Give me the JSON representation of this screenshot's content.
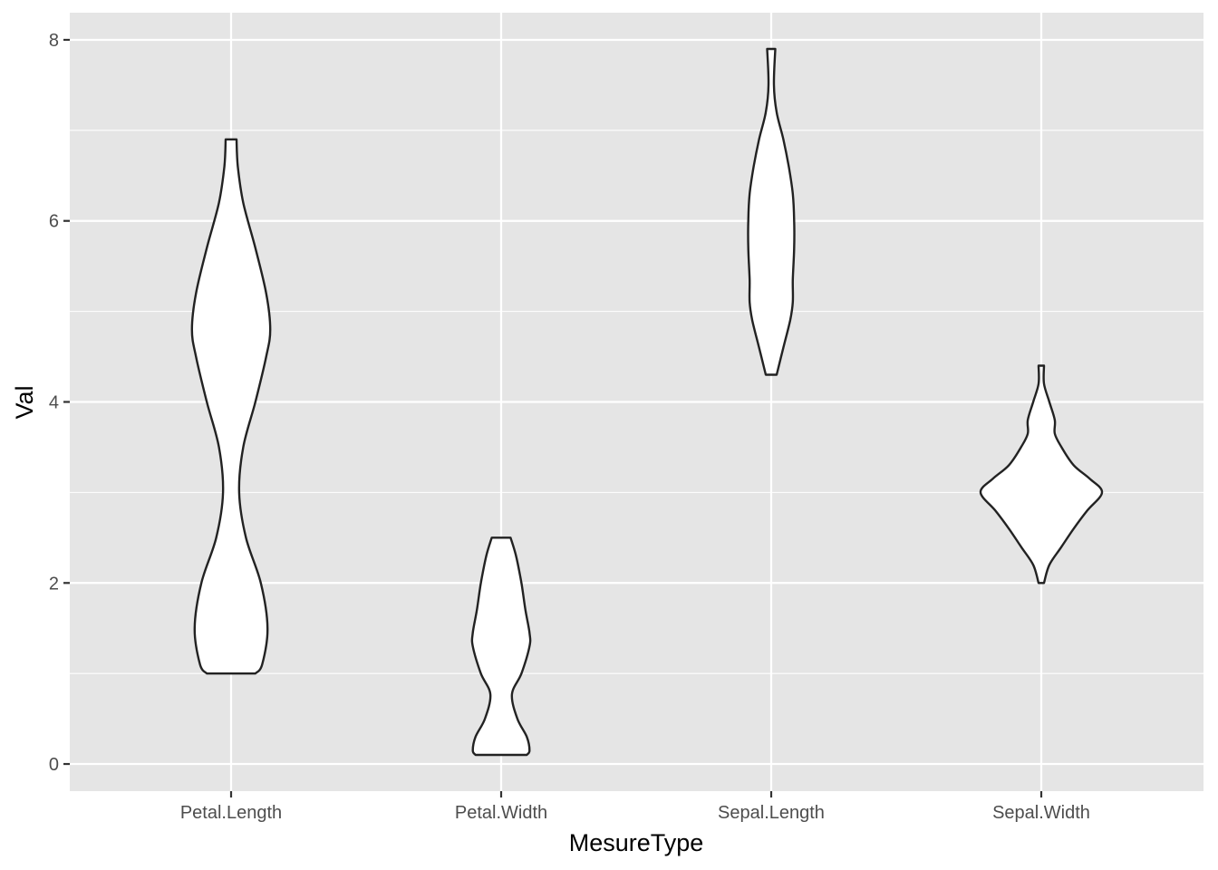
{
  "chart_data": {
    "type": "violin",
    "title": "",
    "xlabel": "MesureType",
    "ylabel": "Val",
    "ylim": [
      -0.3,
      8.3
    ],
    "y_ticks": [
      0,
      2,
      4,
      6,
      8
    ],
    "grid": true,
    "legend": "none",
    "colors": {
      "panel": "#e5e5e5",
      "grid": "#ffffff",
      "violin_fill": "#ffffff",
      "violin_stroke": "#222222",
      "tick_text": "#4d4d4d",
      "title_text": "#000000"
    },
    "categories": [
      "Petal.Length",
      "Petal.Width",
      "Sepal.Length",
      "Sepal.Width"
    ],
    "series": [
      {
        "category": "Petal.Length",
        "min": 1.0,
        "max": 6.9,
        "density_profile": [
          {
            "y": 1.0,
            "half_width": 0.18
          },
          {
            "y": 1.1,
            "half_width": 0.23
          },
          {
            "y": 1.5,
            "half_width": 0.27
          },
          {
            "y": 2.0,
            "half_width": 0.22
          },
          {
            "y": 2.5,
            "half_width": 0.11
          },
          {
            "y": 3.0,
            "half_width": 0.06
          },
          {
            "y": 3.5,
            "half_width": 0.09
          },
          {
            "y": 4.0,
            "half_width": 0.18
          },
          {
            "y": 4.5,
            "half_width": 0.26
          },
          {
            "y": 4.8,
            "half_width": 0.29
          },
          {
            "y": 5.2,
            "half_width": 0.26
          },
          {
            "y": 5.7,
            "half_width": 0.18
          },
          {
            "y": 6.2,
            "half_width": 0.09
          },
          {
            "y": 6.6,
            "half_width": 0.05
          },
          {
            "y": 6.9,
            "half_width": 0.04
          }
        ]
      },
      {
        "category": "Petal.Width",
        "min": 0.1,
        "max": 2.5,
        "density_profile": [
          {
            "y": 0.1,
            "half_width": 0.19
          },
          {
            "y": 0.15,
            "half_width": 0.21
          },
          {
            "y": 0.3,
            "half_width": 0.19
          },
          {
            "y": 0.5,
            "half_width": 0.12
          },
          {
            "y": 0.77,
            "half_width": 0.08
          },
          {
            "y": 1.0,
            "half_width": 0.15
          },
          {
            "y": 1.3,
            "half_width": 0.21
          },
          {
            "y": 1.45,
            "half_width": 0.21
          },
          {
            "y": 1.7,
            "half_width": 0.18
          },
          {
            "y": 2.0,
            "half_width": 0.15
          },
          {
            "y": 2.3,
            "half_width": 0.11
          },
          {
            "y": 2.5,
            "half_width": 0.07
          }
        ]
      },
      {
        "category": "Sepal.Length",
        "min": 4.3,
        "max": 7.9,
        "density_profile": [
          {
            "y": 4.3,
            "half_width": 0.04
          },
          {
            "y": 4.6,
            "half_width": 0.09
          },
          {
            "y": 4.9,
            "half_width": 0.14
          },
          {
            "y": 5.1,
            "half_width": 0.16
          },
          {
            "y": 5.35,
            "half_width": 0.16
          },
          {
            "y": 5.7,
            "half_width": 0.17
          },
          {
            "y": 6.0,
            "half_width": 0.17
          },
          {
            "y": 6.3,
            "half_width": 0.16
          },
          {
            "y": 6.6,
            "half_width": 0.13
          },
          {
            "y": 6.9,
            "half_width": 0.09
          },
          {
            "y": 7.2,
            "half_width": 0.04
          },
          {
            "y": 7.5,
            "half_width": 0.02
          },
          {
            "y": 7.9,
            "half_width": 0.03
          }
        ]
      },
      {
        "category": "Sepal.Width",
        "min": 2.0,
        "max": 4.4,
        "density_profile": [
          {
            "y": 2.0,
            "half_width": 0.02
          },
          {
            "y": 2.2,
            "half_width": 0.06
          },
          {
            "y": 2.4,
            "half_width": 0.15
          },
          {
            "y": 2.6,
            "half_width": 0.24
          },
          {
            "y": 2.8,
            "half_width": 0.34
          },
          {
            "y": 3.0,
            "half_width": 0.45
          },
          {
            "y": 3.15,
            "half_width": 0.36
          },
          {
            "y": 3.3,
            "half_width": 0.24
          },
          {
            "y": 3.5,
            "half_width": 0.15
          },
          {
            "y": 3.65,
            "half_width": 0.1
          },
          {
            "y": 3.8,
            "half_width": 0.1
          },
          {
            "y": 4.0,
            "half_width": 0.06
          },
          {
            "y": 4.2,
            "half_width": 0.02
          },
          {
            "y": 4.4,
            "half_width": 0.02
          }
        ]
      }
    ]
  }
}
